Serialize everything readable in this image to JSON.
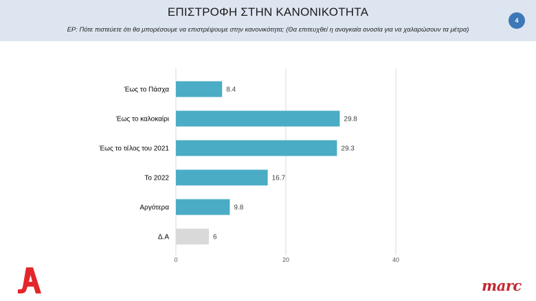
{
  "header": {
    "title": "ΕΠΙΣΤΡΟΦΗ ΣΤΗΝ ΚΑΝΟΝΙΚΟΤΗΤΑ",
    "subtitle": "ΕΡ:  Πότε πιστεύετε ότι θα μπορέσουμε να επιστρέψουμε στην κανονικότητα; (Θα επιτευχθεί η αναγκαία ανοσία  για να χαλαρώσουν τα μέτρα)",
    "page_number": "4"
  },
  "logos": {
    "left_logo": "alpha-logo",
    "right_logo": "marc"
  },
  "colors": {
    "bar": "#4bacc6",
    "bar_muted": "#d9d9d9",
    "header_bg": "#dde5f0",
    "badge": "#3d78b8",
    "brand_red": "#e3262c"
  },
  "chart_data": {
    "type": "bar",
    "orientation": "horizontal",
    "categories": [
      "Έως το Πάσχα",
      "Έως το καλοκαίρι",
      "Έως το τέλος του 2021",
      "Το 2022",
      "Αργότερα",
      "Δ.Α"
    ],
    "values": [
      8.4,
      29.8,
      29.3,
      16.7,
      9.8,
      6
    ],
    "value_labels": [
      "8.4",
      "29.8",
      "29.3",
      "16.7",
      "9.8",
      "6"
    ],
    "muted_categories": [
      "Δ.Α"
    ],
    "xlim": [
      0,
      40
    ],
    "xticks": [
      0,
      20,
      40
    ],
    "grid": true,
    "legend": "none"
  }
}
